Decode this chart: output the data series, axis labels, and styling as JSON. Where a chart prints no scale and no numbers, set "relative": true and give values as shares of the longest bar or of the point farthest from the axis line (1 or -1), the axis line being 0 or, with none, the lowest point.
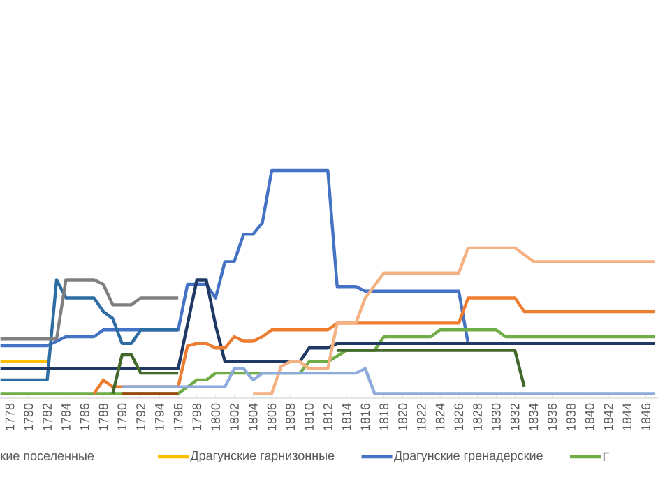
{
  "chart_data": {
    "type": "line",
    "relative": true,
    "legend": "bottom",
    "xlim": [
      1776.95,
      1847.3
    ],
    "xticks": [
      1778,
      1780,
      1782,
      1784,
      1786,
      1788,
      1790,
      1792,
      1794,
      1796,
      1798,
      1800,
      1802,
      1804,
      1806,
      1808,
      1810,
      1812,
      1814,
      1816,
      1818,
      1820,
      1822,
      1824,
      1826,
      1828,
      1830,
      1832,
      1834,
      1836,
      1838,
      1840,
      1842,
      1844,
      1846
    ],
    "annotations": [
      "кие поселенные"
    ],
    "series": [
      {
        "name": "Драгунские гарнизонные",
        "color": "#ffc000",
        "x": [
          1777,
          1782
        ],
        "values": [
          0.16,
          0.16
        ]
      },
      {
        "name": "Драгунские гренадерские",
        "color": "#4472c4",
        "x": [
          1777,
          1782,
          1784,
          1787,
          1788,
          1796,
          1797,
          1799,
          1800,
          1801,
          1802,
          1803,
          1804,
          1805,
          1806,
          1812,
          1813,
          1815,
          1816,
          1826,
          1827
        ],
        "values": [
          0.23,
          0.23,
          0.27,
          0.27,
          0.3,
          0.3,
          0.5,
          0.5,
          0.44,
          0.6,
          0.6,
          0.72,
          0.72,
          0.77,
          1,
          1,
          0.49,
          0.49,
          0.47,
          0.47,
          0.24
        ]
      },
      {
        "name": "Г",
        "color": "#70ad47",
        "x": [
          1777,
          1796,
          1797,
          1798,
          1799,
          1800,
          1809,
          1810,
          1812,
          1814,
          1817,
          1818,
          1823,
          1824,
          1830,
          1831,
          1847
        ],
        "values": [
          0.02,
          0.02,
          0.05,
          0.08,
          0.08,
          0.11,
          0.11,
          0.16,
          0.16,
          0.21,
          0.21,
          0.27,
          0.27,
          0.3,
          0.3,
          0.27,
          0.27
        ]
      },
      {
        "color": "#2e6da4",
        "x": [
          1777,
          1782,
          1783,
          1784,
          1787,
          1788,
          1789,
          1790,
          1791,
          1792,
          1796
        ],
        "values": [
          0.08,
          0.08,
          0.52,
          0.44,
          0.44,
          0.38,
          0.35,
          0.24,
          0.24,
          0.3,
          0.3
        ]
      },
      {
        "color": "#7f7f7f",
        "x": [
          1777,
          1783,
          1784,
          1787,
          1788,
          1789,
          1791,
          1792,
          1796
        ],
        "values": [
          0.26,
          0.26,
          0.52,
          0.52,
          0.5,
          0.41,
          0.41,
          0.44,
          0.44
        ]
      },
      {
        "color": "#203864",
        "x": [
          1777,
          1796,
          1798,
          1799,
          1800,
          1801,
          1809,
          1810,
          1812,
          1813,
          1847
        ],
        "values": [
          0.13,
          0.13,
          0.52,
          0.52,
          0.32,
          0.16,
          0.16,
          0.22,
          0.22,
          0.24,
          0.24
        ]
      },
      {
        "color": "#ed7d31",
        "x": [
          1787,
          1788,
          1789,
          1796,
          1797,
          1798,
          1799,
          1800,
          1801,
          1802,
          1803,
          1804,
          1805,
          1806,
          1812,
          1813,
          1826,
          1827,
          1832,
          1833,
          1847
        ],
        "values": [
          0.02,
          0.08,
          0.05,
          0.05,
          0.23,
          0.24,
          0.24,
          0.22,
          0.22,
          0.27,
          0.25,
          0.25,
          0.27,
          0.3,
          0.3,
          0.33,
          0.33,
          0.44,
          0.44,
          0.38,
          0.38
        ]
      },
      {
        "color": "#f4b183",
        "x": [
          1804,
          1806,
          1807,
          1808,
          1809,
          1810,
          1812,
          1813,
          1815,
          1816,
          1818,
          1826,
          1827,
          1832,
          1834,
          1847
        ],
        "values": [
          0.02,
          0.02,
          0.14,
          0.16,
          0.16,
          0.13,
          0.13,
          0.33,
          0.33,
          0.44,
          0.55,
          0.55,
          0.66,
          0.66,
          0.6,
          0.6
        ]
      },
      {
        "color": "#9e480e",
        "x": [
          1790,
          1796
        ],
        "values": [
          0.02,
          0.02
        ]
      },
      {
        "color": "#43682b",
        "x": [
          1789,
          1790,
          1791,
          1792,
          1796,
          1797,
          1813,
          1832,
          1833
        ],
        "values": [
          0.02,
          0.19,
          0.19,
          0.11,
          0.11,
          null,
          0.21,
          0.21,
          0.05
        ]
      },
      {
        "color": "#8faadc",
        "x": [
          1790,
          1801,
          1802,
          1803,
          1804,
          1805,
          1815,
          1816,
          1817,
          1847
        ],
        "values": [
          0.05,
          0.05,
          0.13,
          0.13,
          0.08,
          0.11,
          0.11,
          0.13,
          0.02,
          0.02
        ]
      }
    ]
  }
}
